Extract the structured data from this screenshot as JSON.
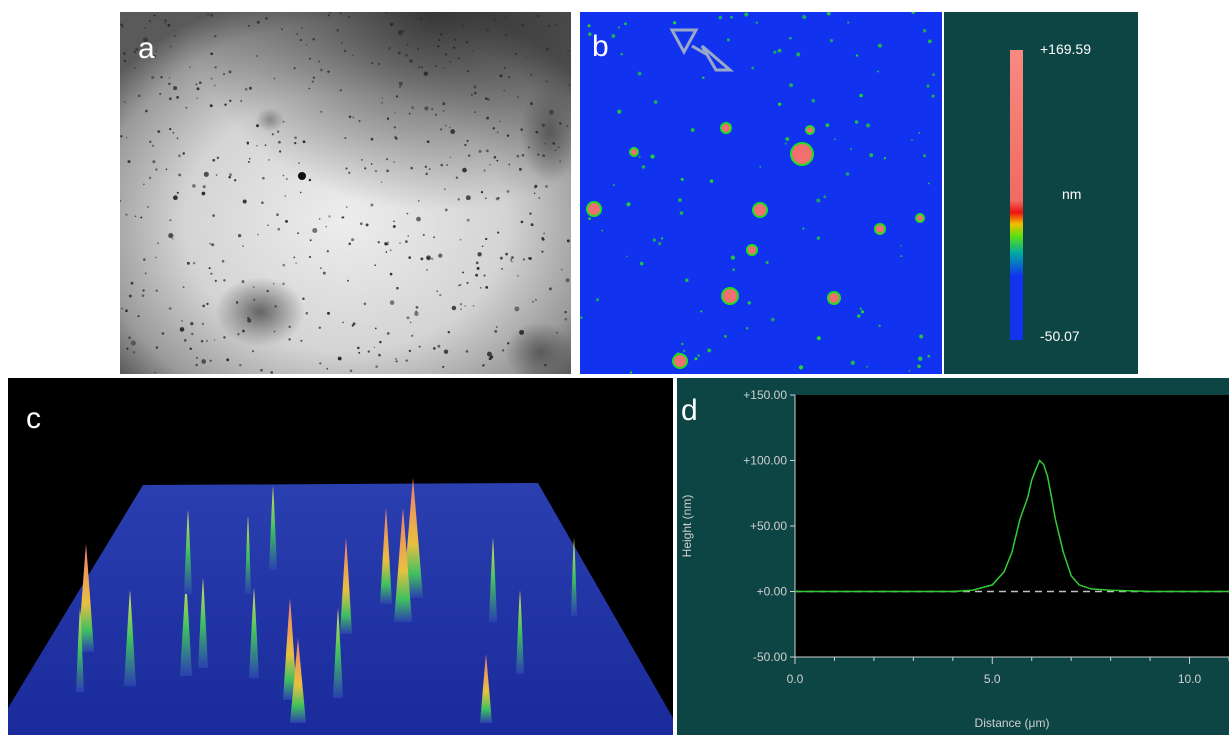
{
  "panels": {
    "a": {
      "label": "a"
    },
    "b": {
      "label": "b",
      "scale_max": "+169.59",
      "scale_unit": "nm",
      "scale_min": "-50.07"
    },
    "c": {
      "label": "c"
    },
    "d": {
      "label": "d"
    }
  },
  "colors": {
    "afm_background": "#1133f0",
    "panel_background": "#0d4545",
    "profile_line": "#33cc33",
    "particle_hot": "#f07070",
    "particle_mid": "#22dd22"
  },
  "chart_data": {
    "type": "line",
    "xlabel": "Distance (μm)",
    "ylabel": "Height (nm)",
    "xlim": [
      0,
      11
    ],
    "ylim": [
      -50,
      150
    ],
    "x_ticks": [
      "0.0",
      "5.0",
      "10.0"
    ],
    "y_ticks": [
      "-50.00",
      "+0.00",
      "+50.00",
      "+100.00",
      "+150.00"
    ],
    "baseline": 0,
    "series": [
      {
        "x": [
          0,
          1,
          2,
          3,
          4,
          4.5,
          5.0,
          5.3,
          5.5,
          5.7,
          5.9,
          6.0,
          6.1,
          6.2,
          6.3,
          6.4,
          6.5,
          6.6,
          6.8,
          7.0,
          7.2,
          7.5,
          8.0,
          9.0,
          10.0,
          11.0
        ],
        "y": [
          0,
          0,
          0,
          0,
          0,
          1,
          5,
          15,
          30,
          55,
          72,
          85,
          93,
          100,
          97,
          88,
          72,
          55,
          30,
          12,
          5,
          2,
          1,
          0,
          0,
          0
        ]
      }
    ]
  }
}
